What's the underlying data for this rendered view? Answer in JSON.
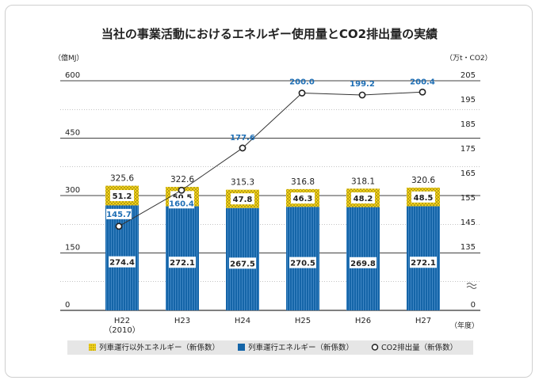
{
  "chart_data": {
    "type": "bar",
    "stacked": true,
    "title": "当社の事業活動におけるエネルギー使用量とCO2排出量の実績",
    "left_axis_unit": "（億MJ）",
    "right_axis_unit": "（万t・CO2）",
    "x_axis_unit": "（年度）",
    "categories": [
      "H22",
      "H23",
      "H24",
      "H25",
      "H26",
      "H27"
    ],
    "category_sub": [
      "（2010）",
      "",
      "",
      "",
      "",
      ""
    ],
    "left_ticks": [
      "600",
      "450",
      "300",
      "150",
      "0"
    ],
    "right_ticks": [
      "205",
      "195",
      "185",
      "175",
      "165",
      "155",
      "145",
      "135",
      "0"
    ],
    "left_ylim": [
      0,
      600
    ],
    "right_ylim": [
      125,
      205
    ],
    "right_axis_break": true,
    "series": [
      {
        "name": "列車運行エネルギー（新係数）",
        "values": [
          274.4,
          272.1,
          267.5,
          270.5,
          269.8,
          272.1
        ],
        "labels": [
          "274.4",
          "272.1",
          "267.5",
          "270.5",
          "269.8",
          "272.1"
        ],
        "color": "#1565a8"
      },
      {
        "name": "列車運行以外エネルギー（新係数）",
        "values": [
          51.2,
          50.5,
          47.8,
          46.3,
          48.2,
          48.5
        ],
        "labels": [
          "51.2",
          "50.5",
          "47.8",
          "46.3",
          "48.2",
          "48.5"
        ],
        "color": "#e8c800"
      }
    ],
    "totals": [
      "325.6",
      "322.6",
      "315.3",
      "316.8",
      "318.1",
      "320.6"
    ],
    "line_series": {
      "name": "CO2排出量（新係数）",
      "axis": "right",
      "values": [
        145.7,
        160.4,
        177.6,
        200.0,
        199.2,
        200.4
      ],
      "labels": [
        "145.7",
        "160.4",
        "177.6",
        "200.0",
        "199.2",
        "200.4"
      ],
      "color": "#1f6fb5"
    },
    "legend": [
      "列車運行以外エネルギー（新係数）",
      "列車運行エネルギー（新係数）",
      "CO2排出量（新係数）"
    ],
    "legend_position": "bottom",
    "grid": true
  }
}
